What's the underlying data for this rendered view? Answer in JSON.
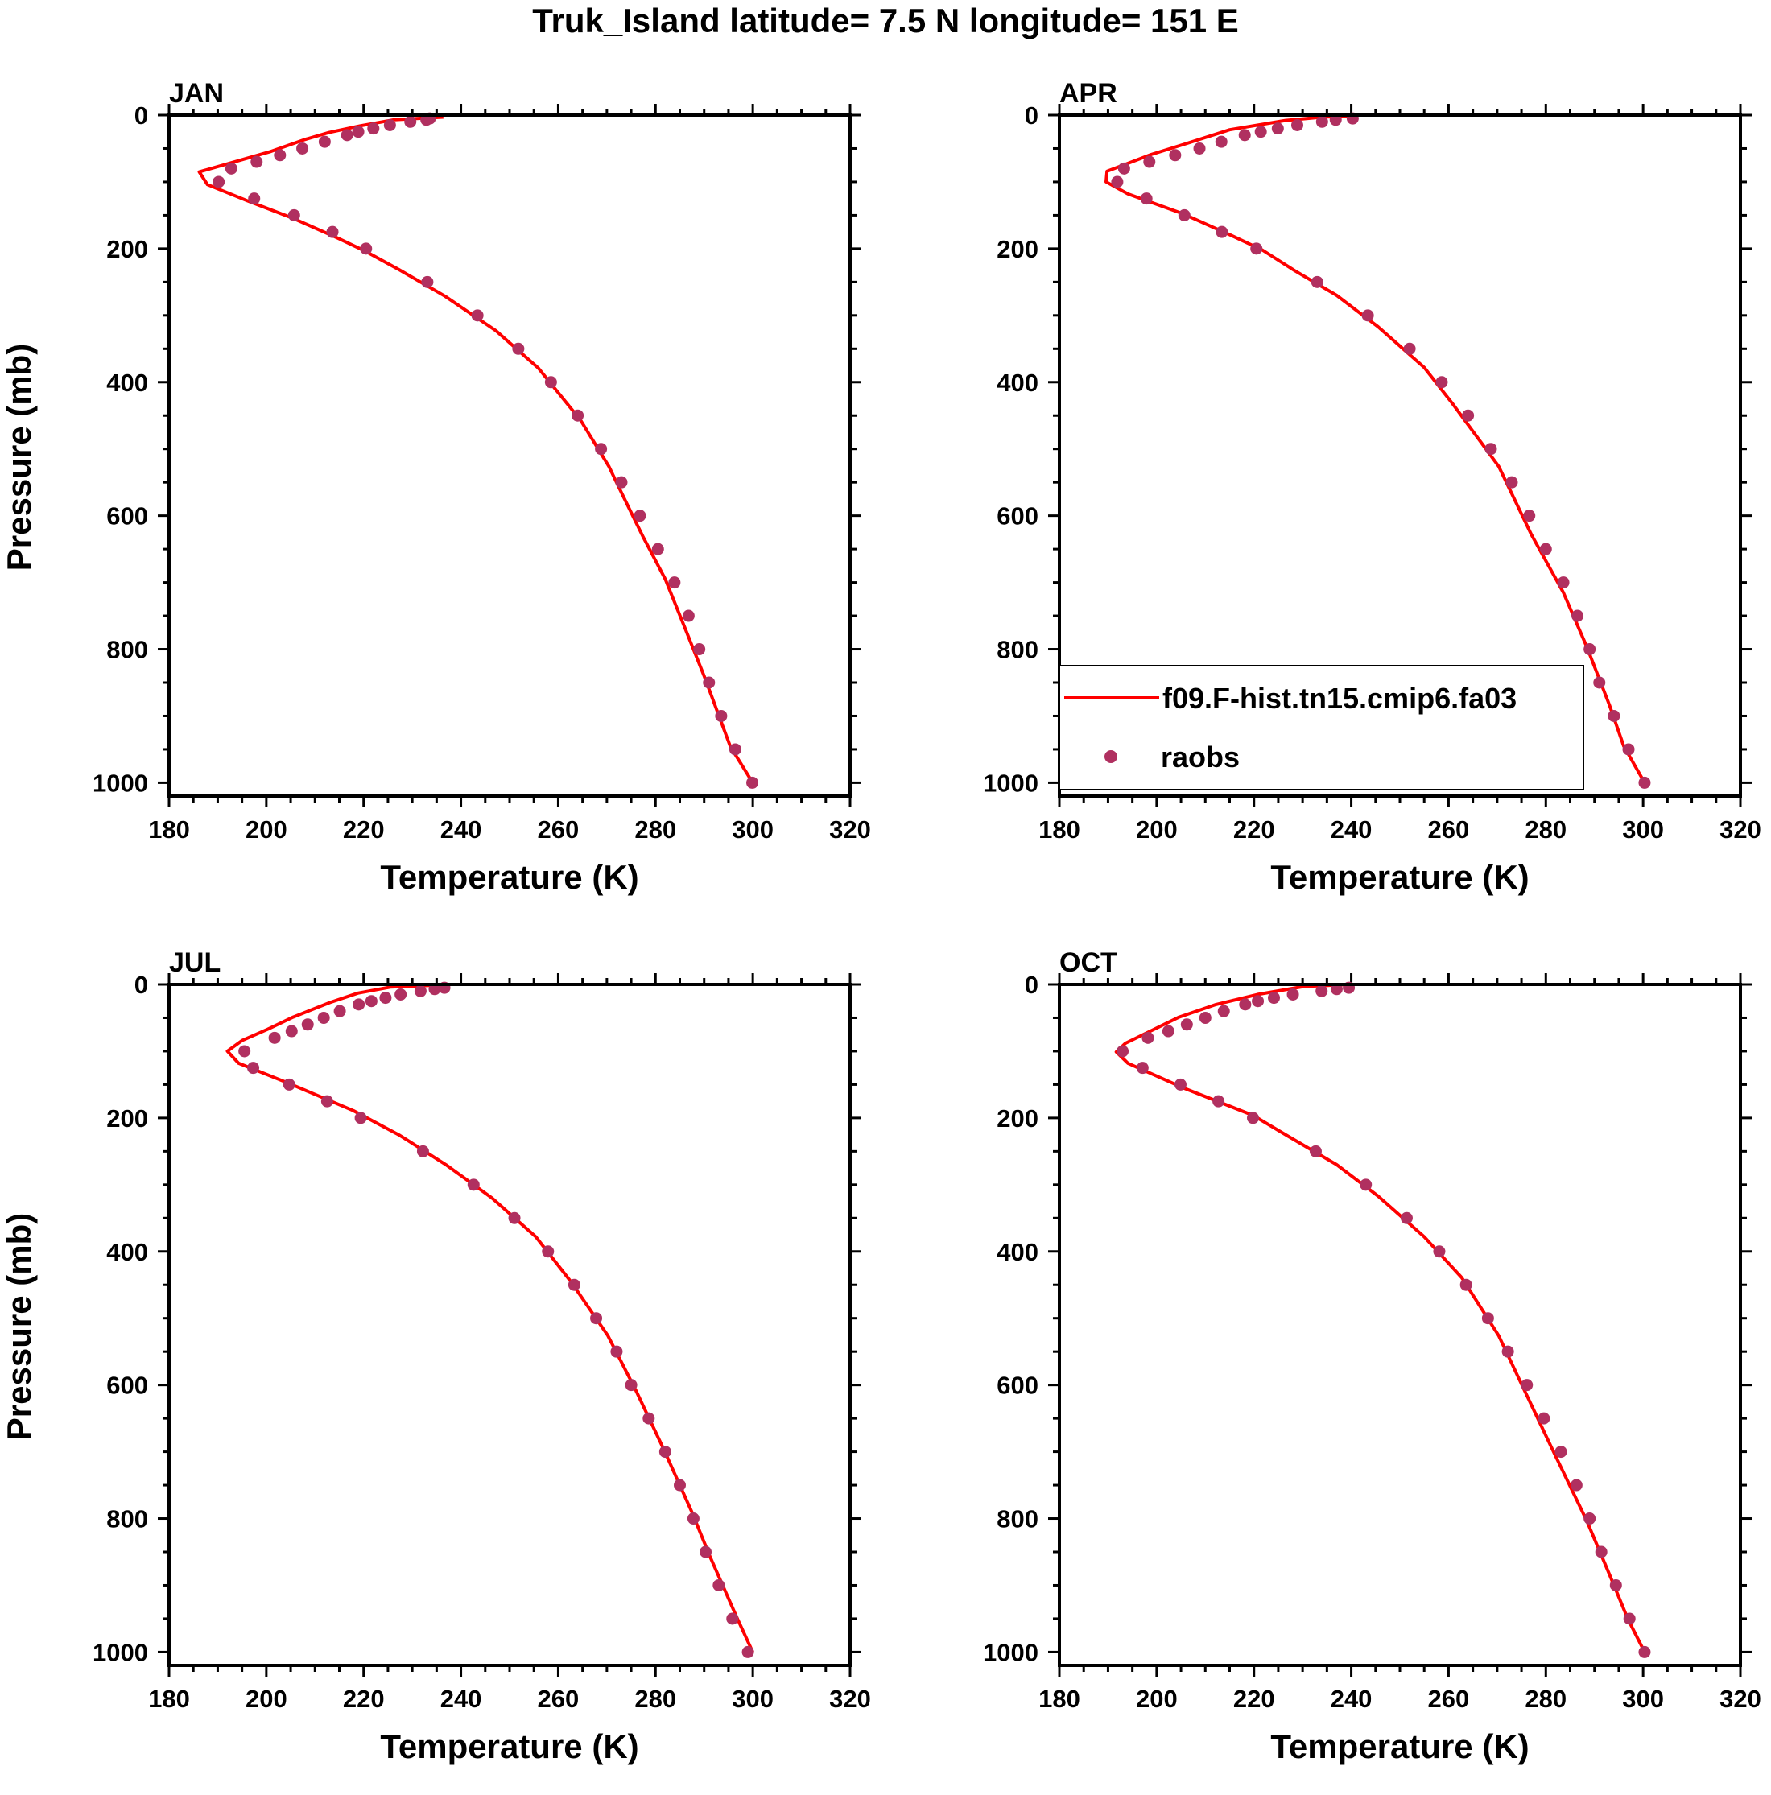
{
  "chart_data": {
    "type": "line",
    "title": "Truk_Island  latitude= 7.5 N longitude= 151 E",
    "xlabel": "Temperature (K)",
    "ylabel": "Pressure (mb)",
    "xlim": [
      180,
      320
    ],
    "ylim": [
      0,
      1020
    ],
    "y_reversed": true,
    "xticks": [
      180,
      200,
      220,
      240,
      260,
      280,
      300,
      320
    ],
    "xtick_labels": [
      "180",
      "200",
      "220",
      "240",
      "260",
      "280",
      "300",
      "320"
    ],
    "yticks": [
      0,
      200,
      400,
      600,
      800,
      1000
    ],
    "ytick_labels": [
      "0",
      "200",
      "400",
      "600",
      "800",
      "1000"
    ],
    "legend": {
      "placement": "bottom-left (APR panel)",
      "entries": [
        "f09.F-hist.tn15.cmip6.fa03",
        "raobs"
      ]
    },
    "colors": {
      "model": "#ff0000",
      "raobs": "#b03060"
    },
    "obs_levels": [
      1000,
      950,
      900,
      850,
      800,
      750,
      700,
      650,
      600,
      550,
      500,
      450,
      400,
      350,
      300,
      250,
      200,
      175,
      150,
      125,
      100,
      80,
      70,
      60,
      50,
      40,
      30,
      25,
      20,
      15,
      10,
      7,
      5
    ],
    "panels": [
      {
        "label": "JAN",
        "raobs_T": [
          299.9,
          296.4,
          293.5,
          291,
          289,
          286.8,
          283.9,
          280.5,
          276.8,
          273,
          268.8,
          264,
          258.5,
          251.8,
          243.4,
          233.1,
          220.5,
          213.6,
          205.7,
          197.5,
          190.2,
          192.8,
          198,
          202.8,
          207.4,
          212,
          216.6,
          218.9,
          222,
          225.4,
          229.6,
          232.9,
          233.6
        ],
        "model": [
          [
            236.4,
            3
          ],
          [
            226.2,
            7
          ],
          [
            219.3,
            16
          ],
          [
            212.9,
            26
          ],
          [
            207.7,
            37
          ],
          [
            200.7,
            55
          ],
          [
            186.2,
            85
          ],
          [
            187.9,
            104
          ],
          [
            196,
            128
          ],
          [
            205.3,
            154
          ],
          [
            214.6,
            184
          ],
          [
            220.4,
            204
          ],
          [
            227.4,
            232
          ],
          [
            236.7,
            271
          ],
          [
            247.2,
            323
          ],
          [
            255.9,
            379
          ],
          [
            264.6,
            457
          ],
          [
            270.4,
            526
          ],
          [
            273.3,
            570
          ],
          [
            277.4,
            631
          ],
          [
            282,
            695
          ],
          [
            286.1,
            769
          ],
          [
            290.1,
            842
          ],
          [
            293,
            899
          ],
          [
            295.4,
            946
          ],
          [
            300,
            1000
          ]
        ]
      },
      {
        "label": "APR",
        "raobs_T": [
          300.3,
          297,
          294,
          291,
          289,
          286.5,
          283.6,
          280,
          276.6,
          273,
          268.7,
          264,
          258.6,
          252,
          243.4,
          233,
          220.5,
          213.4,
          205.7,
          197.9,
          191.9,
          193.3,
          198.5,
          203.8,
          208.8,
          213.3,
          218.1,
          221.4,
          224.9,
          228.9,
          234,
          236.8,
          240.3
        ],
        "model": [
          [
            240.3,
            1
          ],
          [
            234,
            3
          ],
          [
            226.5,
            8
          ],
          [
            215,
            22
          ],
          [
            205.5,
            44
          ],
          [
            198.9,
            59
          ],
          [
            189.8,
            84
          ],
          [
            189.6,
            100
          ],
          [
            194.1,
            118
          ],
          [
            205.5,
            148
          ],
          [
            215,
            179
          ],
          [
            221.7,
            202
          ],
          [
            228.4,
            233
          ],
          [
            237,
            270
          ],
          [
            245.5,
            317
          ],
          [
            255,
            378
          ],
          [
            260.8,
            432
          ],
          [
            270.3,
            526
          ],
          [
            277,
            628
          ],
          [
            283.6,
            715
          ],
          [
            288.4,
            796
          ],
          [
            293.1,
            884
          ],
          [
            296,
            945
          ],
          [
            300.3,
            1000
          ]
        ]
      },
      {
        "label": "JUL",
        "raobs_T": [
          299,
          295.8,
          293,
          290.3,
          287.8,
          285,
          282,
          278.6,
          275,
          272,
          267.8,
          263.3,
          257.9,
          251,
          242.6,
          232.2,
          219.4,
          212.5,
          204.7,
          197.3,
          195.5,
          201.7,
          205.2,
          208.5,
          211.8,
          215.1,
          219,
          221.6,
          224.5,
          227.6,
          231.7,
          234.6,
          236.6
        ],
        "model": [
          [
            235.5,
            1
          ],
          [
            225.5,
            4
          ],
          [
            218.8,
            13
          ],
          [
            213.1,
            27
          ],
          [
            205.5,
            49
          ],
          [
            200.3,
            67
          ],
          [
            195,
            84
          ],
          [
            192,
            100
          ],
          [
            194.3,
            118
          ],
          [
            204.6,
            148
          ],
          [
            217.9,
            189
          ],
          [
            227.4,
            226
          ],
          [
            236.9,
            270
          ],
          [
            246.4,
            320
          ],
          [
            255.4,
            378
          ],
          [
            262.6,
            445
          ],
          [
            270.2,
            526
          ],
          [
            275.9,
            607
          ],
          [
            281.6,
            695
          ],
          [
            287.4,
            789
          ],
          [
            291.2,
            857
          ],
          [
            296.9,
            951
          ],
          [
            300,
            1000
          ]
        ]
      },
      {
        "label": "OCT",
        "raobs_T": [
          300.3,
          297.2,
          294.4,
          291.4,
          289,
          286.3,
          283.1,
          279.6,
          276.1,
          272.2,
          268.1,
          263.6,
          258.1,
          251.4,
          243,
          232.7,
          219.8,
          212.7,
          204.9,
          197.1,
          193,
          198.2,
          202.4,
          206.2,
          210,
          213.8,
          218.2,
          220.8,
          224.1,
          228,
          233.9,
          237,
          239.5
        ],
        "model": [
          [
            239.8,
            0
          ],
          [
            230.3,
            3
          ],
          [
            220.8,
            15
          ],
          [
            212.2,
            30
          ],
          [
            204.6,
            49
          ],
          [
            193.6,
            88
          ],
          [
            191.7,
            101
          ],
          [
            194.1,
            118
          ],
          [
            205.5,
            155
          ],
          [
            219.8,
            196
          ],
          [
            227.4,
            229
          ],
          [
            237,
            270
          ],
          [
            245.5,
            317
          ],
          [
            255,
            378
          ],
          [
            262.7,
            439
          ],
          [
            270.3,
            526
          ],
          [
            276,
            614
          ],
          [
            281.7,
            702
          ],
          [
            288.4,
            803
          ],
          [
            293.1,
            884
          ],
          [
            296.9,
            951
          ],
          [
            300.3,
            1000
          ]
        ]
      }
    ]
  }
}
